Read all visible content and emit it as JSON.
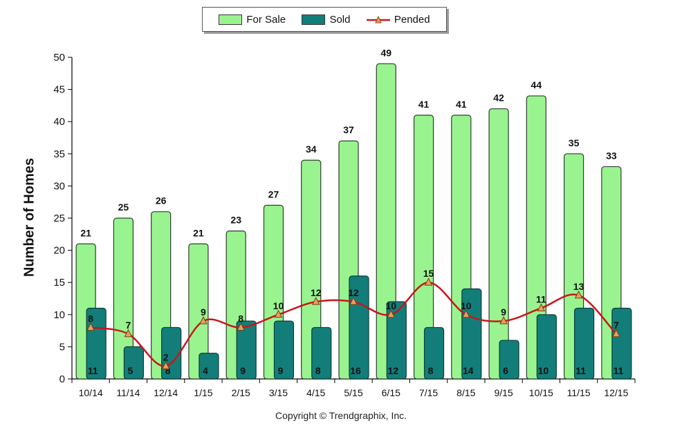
{
  "chart_data": {
    "type": "bar",
    "categories": [
      "10/14",
      "11/14",
      "12/14",
      "1/15",
      "2/15",
      "3/15",
      "4/15",
      "5/15",
      "6/15",
      "7/15",
      "8/15",
      "9/15",
      "10/15",
      "11/15",
      "12/15"
    ],
    "series": [
      {
        "name": "For Sale",
        "kind": "bar",
        "color": "#99f48f",
        "values": [
          21,
          25,
          26,
          21,
          23,
          27,
          34,
          37,
          49,
          41,
          41,
          42,
          44,
          35,
          33
        ]
      },
      {
        "name": "Sold",
        "kind": "bar",
        "color": "#137e79",
        "values": [
          11,
          5,
          8,
          4,
          9,
          9,
          8,
          16,
          12,
          8,
          14,
          6,
          10,
          11,
          11
        ]
      },
      {
        "name": "Pended",
        "kind": "line",
        "color": "#c9161a",
        "marker_color": "#e8a060",
        "values": [
          8,
          7,
          2,
          9,
          8,
          10,
          12,
          12,
          10,
          15,
          10,
          9,
          11,
          13,
          7
        ]
      }
    ],
    "ylabel": "Number of Homes",
    "xlabel": "",
    "ylim": [
      0,
      50
    ],
    "yticks": [
      0,
      5,
      10,
      15,
      20,
      25,
      30,
      35,
      40,
      45,
      50
    ],
    "legend_position": "top-center"
  },
  "footer": {
    "copyright": "Copyright © Trendgraphix, Inc."
  }
}
